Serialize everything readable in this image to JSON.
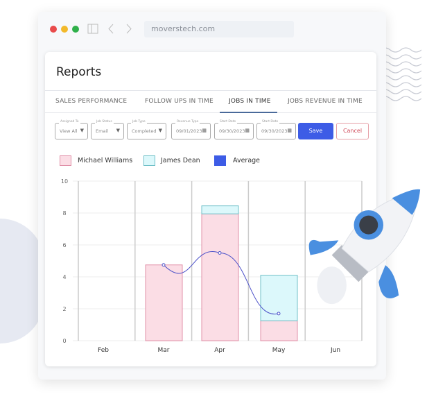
{
  "browser": {
    "url": "moverstech.com",
    "dots": [
      "#e94b4b",
      "#f2b92b",
      "#2fb04a"
    ]
  },
  "page": {
    "title": "Reports"
  },
  "tabs": [
    {
      "label": "SALES PERFORMANCE"
    },
    {
      "label": "FOLLOW UPS IN TIME"
    },
    {
      "label": "JOBS IN TIME",
      "active": true
    },
    {
      "label": "JOBS REVENUE IN TIME"
    }
  ],
  "filters": [
    {
      "label": "Assigned To",
      "value": "View All",
      "icon": "caret-down"
    },
    {
      "label": "Job Status",
      "value": "Email",
      "icon": "caret-down"
    },
    {
      "label": "Job Type",
      "value": "Completed",
      "icon": "caret-down"
    },
    {
      "label": "Revenue Type",
      "value": "09/01/2023",
      "icon": "calendar"
    },
    {
      "label": "Start Date",
      "value": "09/30/2023",
      "icon": "calendar"
    },
    {
      "label": "Start Date",
      "value": "09/30/2023",
      "icon": "calendar"
    }
  ],
  "actions": {
    "save": "Save",
    "cancel": "Cancel"
  },
  "chart_data": {
    "type": "bar",
    "stacked": true,
    "categories": [
      "Feb",
      "Mar",
      "Apr",
      "May",
      "Jun"
    ],
    "ylim": [
      0,
      10
    ],
    "yticks": [
      0,
      2,
      4,
      6,
      8,
      10
    ],
    "grid": true,
    "legend": "top-left",
    "series": [
      {
        "name": "Michael Williams",
        "type": "bar",
        "color": "#fbdde5",
        "values": [
          0,
          4.75,
          7.95,
          1.25,
          0
        ]
      },
      {
        "name": "James Dean",
        "type": "bar",
        "color": "#dcf8fb",
        "values": [
          0,
          0,
          0.5,
          2.85,
          0
        ]
      },
      {
        "name": "Average",
        "type": "line",
        "color": "#3d5ce6",
        "values": [
          null,
          4.75,
          5.5,
          1.7,
          null
        ]
      }
    ]
  }
}
